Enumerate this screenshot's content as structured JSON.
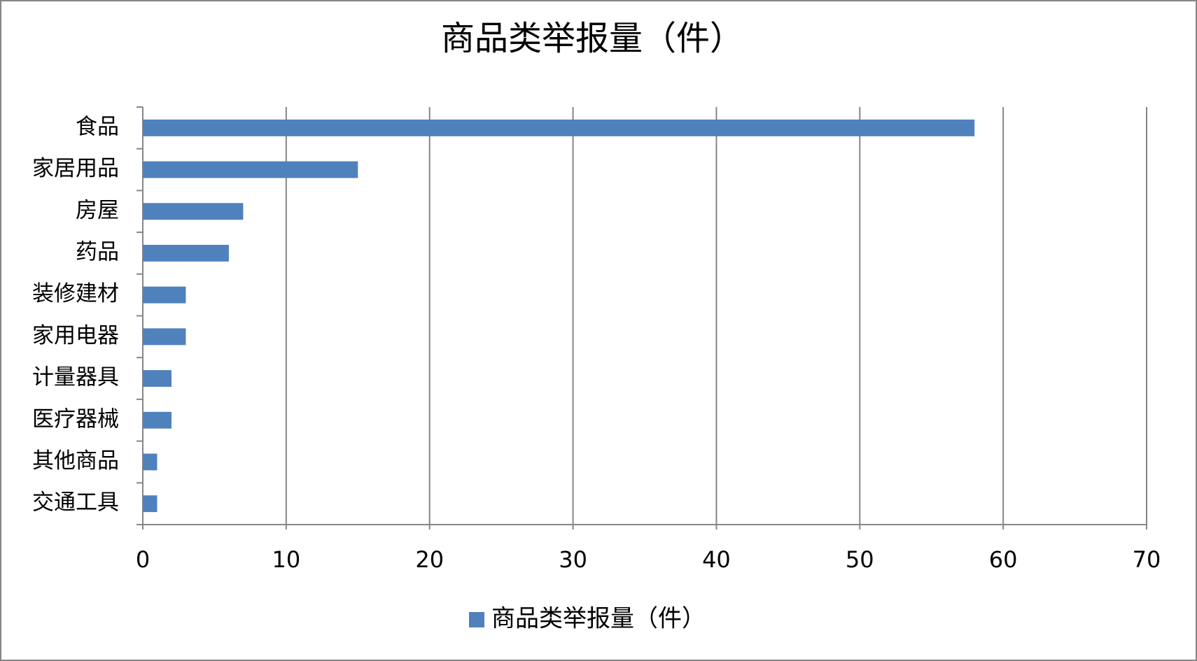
{
  "chart_data": {
    "type": "bar",
    "orientation": "horizontal",
    "title": "商品类举报量（件）",
    "categories": [
      "食品",
      "家居用品",
      "房屋",
      "药品",
      "装修建材",
      "家用电器",
      "计量器具",
      "医疗器械",
      "其他商品",
      "交通工具"
    ],
    "series": [
      {
        "name": "商品类举报量（件）",
        "color": "#4f81bd",
        "values": [
          58,
          15,
          7,
          6,
          3,
          3,
          2,
          2,
          1,
          1
        ]
      }
    ],
    "xlim": [
      0,
      70
    ],
    "xticks": [
      0,
      10,
      20,
      30,
      40,
      50,
      60,
      70
    ],
    "grid": true,
    "legend": "bottom"
  }
}
